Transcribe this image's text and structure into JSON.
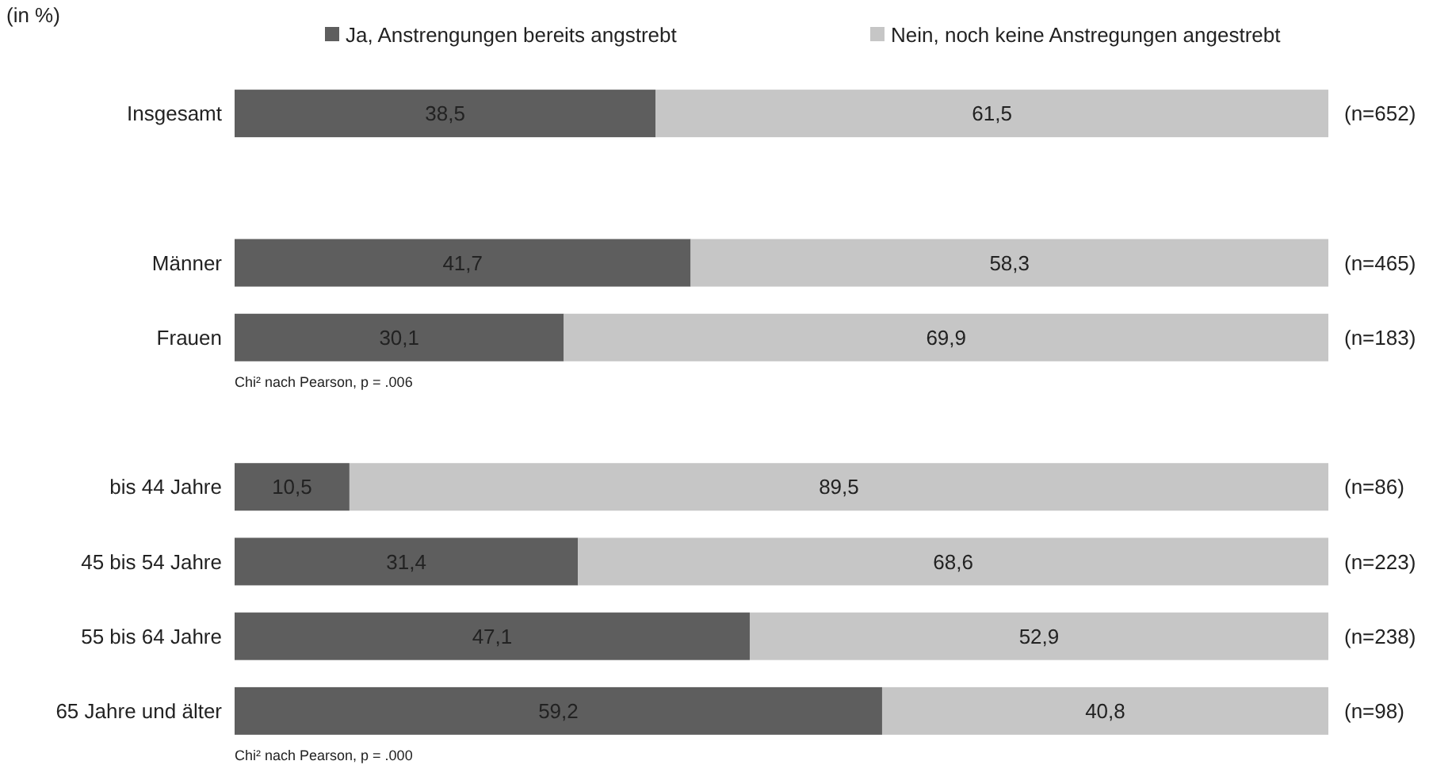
{
  "chart_data": {
    "type": "bar",
    "orientation": "horizontal",
    "stacked": true,
    "subtitle": "(in %)",
    "legend": "top",
    "categories": [
      "Insgesamt",
      null,
      "Männer",
      "Frauen",
      null,
      "bis 44 Jahre",
      "45 bis 54 Jahre",
      "55 bis 64 Jahre",
      "65 Jahre und älter"
    ],
    "xlim": [
      0,
      100
    ],
    "series": [
      {
        "name": "Ja, Anstrengungen bereits angstrebt",
        "color": "#5e5e5e",
        "values": [
          38.5,
          null,
          41.7,
          30.1,
          null,
          10.5,
          31.4,
          47.1,
          59.2
        ],
        "value_labels": [
          "38,5",
          null,
          "41,7",
          "30,1",
          null,
          "10,5",
          "31,4",
          "47,1",
          "59,2"
        ]
      },
      {
        "name": "Nein, noch keine Anstregungen angestrebt",
        "color": "#c6c6c6",
        "values": [
          61.5,
          null,
          58.3,
          69.9,
          null,
          89.5,
          68.6,
          52.9,
          40.8
        ],
        "value_labels": [
          "61,5",
          null,
          "58,3",
          "69,9",
          null,
          "89,5",
          "68,6",
          "52,9",
          "40,8"
        ]
      }
    ],
    "annotations": [
      "(n=652)",
      "(n=465)",
      "(n=183)",
      "(n=86)",
      "(n=223)",
      "(n=238)",
      "(n=98)",
      "Chi² nach Pearson, p = .006",
      "Chi² nach Pearson, p = .000"
    ]
  }
}
